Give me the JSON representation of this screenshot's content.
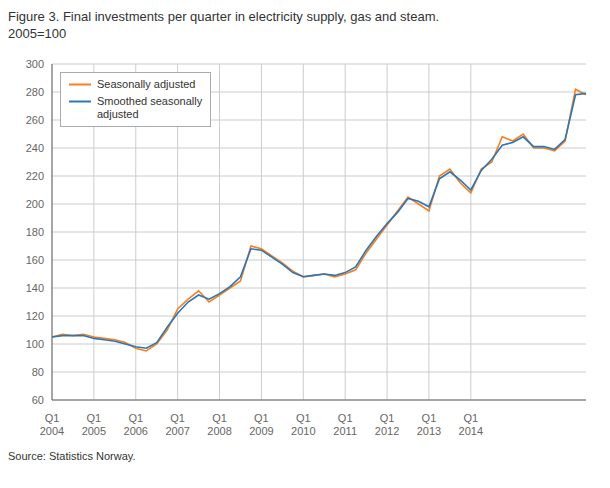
{
  "chart_data": {
    "type": "line",
    "title": "Figure 3. Final investments per quarter in electricity supply, gas and steam.",
    "subtitle": "2005=100",
    "annotations": [
      "Source: Statistics Norway."
    ],
    "categories": [
      "Q1\n2004",
      null,
      null,
      null,
      "Q1\n2005",
      null,
      null,
      null,
      "Q1\n2006",
      null,
      null,
      null,
      "Q1\n2007",
      null,
      null,
      null,
      "Q1\n2008",
      null,
      null,
      null,
      "Q1\n2009",
      null,
      null,
      null,
      "Q1\n2010",
      null,
      null,
      null,
      "Q1\n2011",
      null,
      null,
      null,
      "Q1\n2012",
      null,
      null,
      null,
      "Q1\n2013",
      null,
      null,
      null,
      "Q1\n2014",
      null,
      null,
      null,
      null,
      null,
      null,
      null,
      null,
      null,
      null,
      null
    ],
    "series": [
      {
        "name": "Seasonally adjusted",
        "color": "#F57F20",
        "values": [
          105,
          107,
          106,
          107,
          105,
          104,
          103,
          101,
          97,
          95,
          100,
          110,
          125,
          132,
          138,
          130,
          135,
          140,
          145,
          170,
          168,
          163,
          158,
          152,
          148,
          149,
          150,
          148,
          150,
          153,
          165,
          175,
          185,
          195,
          205,
          200,
          195,
          220,
          225,
          215,
          208,
          225,
          230,
          248,
          245,
          250,
          240,
          240,
          238,
          245,
          282,
          278
        ]
      },
      {
        "name": "Smoothed seasonally\nadjusted",
        "color": "#2E75B6",
        "values": [
          105,
          106,
          106,
          106,
          104,
          103,
          102,
          100,
          98,
          97,
          101,
          112,
          122,
          130,
          135,
          132,
          136,
          141,
          148,
          168,
          167,
          162,
          157,
          151,
          148,
          149,
          150,
          149,
          151,
          155,
          167,
          177,
          186,
          194,
          204,
          202,
          198,
          218,
          223,
          217,
          210,
          224,
          232,
          242,
          244,
          248,
          241,
          241,
          239,
          246,
          278,
          279
        ]
      }
    ],
    "ylim": [
      60,
      300
    ],
    "yticks": [
      60,
      80,
      100,
      120,
      140,
      160,
      180,
      200,
      220,
      240,
      260,
      280,
      300
    ],
    "grid": true,
    "legend": "upper left"
  }
}
